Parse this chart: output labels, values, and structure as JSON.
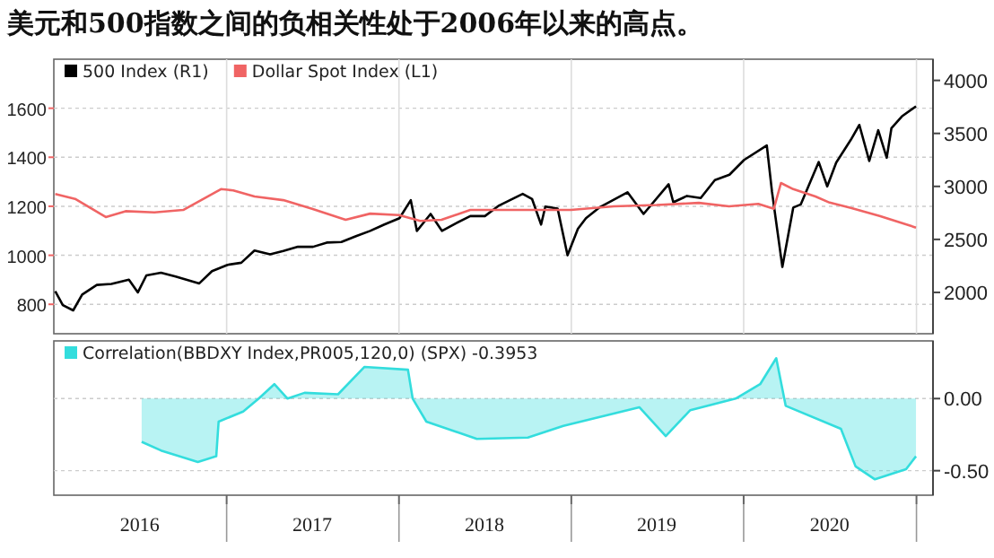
{
  "chart_data": [
    {
      "type": "line",
      "title": "美元和500指数之间的负相关性处于2006年以来的高点。",
      "legend": "top left",
      "grid": true,
      "tick_labels": "y",
      "xlim": [
        "2016-01-01",
        "2021-02-05"
      ],
      "xticks": [
        {
          "value": "2017-01-01",
          "label": null
        },
        {
          "value": "2018-01-01",
          "label": null
        },
        {
          "value": "2019-01-01",
          "label": null
        },
        {
          "value": "2020-01-01",
          "label": null
        },
        {
          "value": "2021-01-01",
          "label": null
        }
      ],
      "ylim": [
        680,
        1800
      ],
      "yticks": [
        800,
        1000,
        1200,
        1400,
        1600
      ],
      "y2lim": [
        1610,
        4200
      ],
      "y2ticks": [
        2000,
        2500,
        3000,
        3500,
        4000
      ],
      "series": [
        {
          "name": "500 Index (R1)",
          "color": "#000000",
          "axis": "y2",
          "x": [
            "2016-01-04",
            "2016-01-20",
            "2016-02-11",
            "2016-03-01",
            "2016-04-01",
            "2016-05-02",
            "2016-06-08",
            "2016-06-27",
            "2016-07-15",
            "2016-08-15",
            "2016-09-15",
            "2016-11-04",
            "2016-12-01",
            "2017-01-03",
            "2017-02-01",
            "2017-03-01",
            "2017-04-03",
            "2017-05-01",
            "2017-06-01",
            "2017-07-03",
            "2017-08-01",
            "2017-09-01",
            "2017-10-02",
            "2017-11-01",
            "2017-12-01",
            "2018-01-02",
            "2018-01-26",
            "2018-02-08",
            "2018-03-09",
            "2018-04-02",
            "2018-05-01",
            "2018-06-01",
            "2018-07-02",
            "2018-08-01",
            "2018-09-20",
            "2018-10-10",
            "2018-10-29",
            "2018-11-07",
            "2018-12-03",
            "2018-12-24",
            "2019-01-15",
            "2019-02-01",
            "2019-03-01",
            "2019-04-30",
            "2019-06-03",
            "2019-07-26",
            "2019-08-05",
            "2019-09-03",
            "2019-10-02",
            "2019-11-01",
            "2019-12-02",
            "2020-01-02",
            "2020-02-19",
            "2020-03-01",
            "2020-03-23",
            "2020-04-15",
            "2020-05-01",
            "2020-06-08",
            "2020-06-26",
            "2020-07-15",
            "2020-08-15",
            "2020-09-02",
            "2020-09-23",
            "2020-10-12",
            "2020-10-30",
            "2020-11-09",
            "2020-12-01",
            "2020-12-31"
          ],
          "values": [
            2010,
            1880,
            1830,
            1980,
            2070,
            2080,
            2120,
            2000,
            2160,
            2185,
            2150,
            2085,
            2200,
            2260,
            2280,
            2395,
            2360,
            2390,
            2430,
            2430,
            2470,
            2475,
            2530,
            2580,
            2640,
            2700,
            2870,
            2580,
            2740,
            2580,
            2650,
            2720,
            2720,
            2820,
            2930,
            2880,
            2640,
            2810,
            2790,
            2350,
            2600,
            2700,
            2800,
            2945,
            2740,
            3020,
            2850,
            2910,
            2890,
            3060,
            3110,
            3250,
            3386,
            2950,
            2240,
            2800,
            2830,
            3230,
            3000,
            3225,
            3440,
            3580,
            3240,
            3530,
            3270,
            3550,
            3660,
            3756
          ]
        },
        {
          "name": "Dollar Spot Index (L1)",
          "color": "#f06464",
          "axis": "y",
          "x": [
            "2016-01-04",
            "2016-02-15",
            "2016-04-20",
            "2016-06-01",
            "2016-08-01",
            "2016-10-01",
            "2016-12-20",
            "2017-01-15",
            "2017-03-01",
            "2017-05-01",
            "2017-07-01",
            "2017-09-10",
            "2017-11-01",
            "2018-01-01",
            "2018-02-15",
            "2018-04-01",
            "2018-06-01",
            "2018-09-10",
            "2018-12-31",
            "2019-04-01",
            "2019-07-01",
            "2019-09-28",
            "2019-12-01",
            "2020-02-01",
            "2020-03-05",
            "2020-03-20",
            "2020-04-15",
            "2020-06-01",
            "2020-07-01",
            "2020-08-15",
            "2020-10-15",
            "2020-12-31"
          ],
          "values": [
            1250,
            1230,
            1156,
            1180,
            1175,
            1185,
            1270,
            1265,
            1240,
            1225,
            1190,
            1145,
            1170,
            1164,
            1140,
            1145,
            1185,
            1185,
            1185,
            1200,
            1205,
            1214,
            1200,
            1210,
            1190,
            1295,
            1270,
            1240,
            1215,
            1193,
            1160,
            1113
          ]
        }
      ]
    },
    {
      "type": "area",
      "legend": "top left",
      "grid": "y",
      "xlim": [
        "2016-01-01",
        "2021-02-05"
      ],
      "xticks": [
        {
          "value": "2016-07-01",
          "label": "2016"
        },
        {
          "value": "2017-01-01",
          "label": null
        },
        {
          "value": "2017-07-01",
          "label": "2017"
        },
        {
          "value": "2018-01-01",
          "label": null
        },
        {
          "value": "2018-07-01",
          "label": "2018"
        },
        {
          "value": "2019-01-01",
          "label": null
        },
        {
          "value": "2019-07-01",
          "label": "2019"
        },
        {
          "value": "2020-01-01",
          "label": null
        },
        {
          "value": "2020-07-01",
          "label": "2020"
        },
        {
          "value": "2021-01-01",
          "label": null
        }
      ],
      "y2lim": [
        -0.67,
        0.4
      ],
      "y2ticks": [
        {
          "value": 0,
          "label": "0.00"
        },
        {
          "value": -0.5,
          "label": "-0.50"
        }
      ],
      "series": [
        {
          "name": "Correlation(BBDXY Index,PR005,120,0) (SPX) -0.3953",
          "color": "#33dddd",
          "axis": "y2",
          "x": [
            "2016-07-05",
            "2016-08-15",
            "2016-11-01",
            "2016-12-10",
            "2016-12-15",
            "2017-02-05",
            "2017-03-10",
            "2017-04-12",
            "2017-05-10",
            "2017-06-15",
            "2017-08-25",
            "2017-10-20",
            "2018-01-20",
            "2018-01-30",
            "2018-02-28",
            "2018-06-15",
            "2018-10-01",
            "2018-12-15",
            "2019-05-25",
            "2019-07-20",
            "2019-09-10",
            "2019-12-15",
            "2020-02-05",
            "2020-03-10",
            "2020-03-30",
            "2020-07-25",
            "2020-08-25",
            "2020-10-05",
            "2020-12-10",
            "2020-12-31"
          ],
          "values": [
            -0.3,
            -0.36,
            -0.44,
            -0.4,
            -0.16,
            -0.09,
            0,
            0.1,
            0,
            0.04,
            0.03,
            0.22,
            0.2,
            0,
            -0.16,
            -0.28,
            -0.27,
            -0.19,
            -0.06,
            -0.26,
            -0.08,
            0,
            0.1,
            0.28,
            -0.05,
            -0.21,
            -0.47,
            -0.56,
            -0.49,
            -0.4
          ]
        }
      ]
    }
  ]
}
